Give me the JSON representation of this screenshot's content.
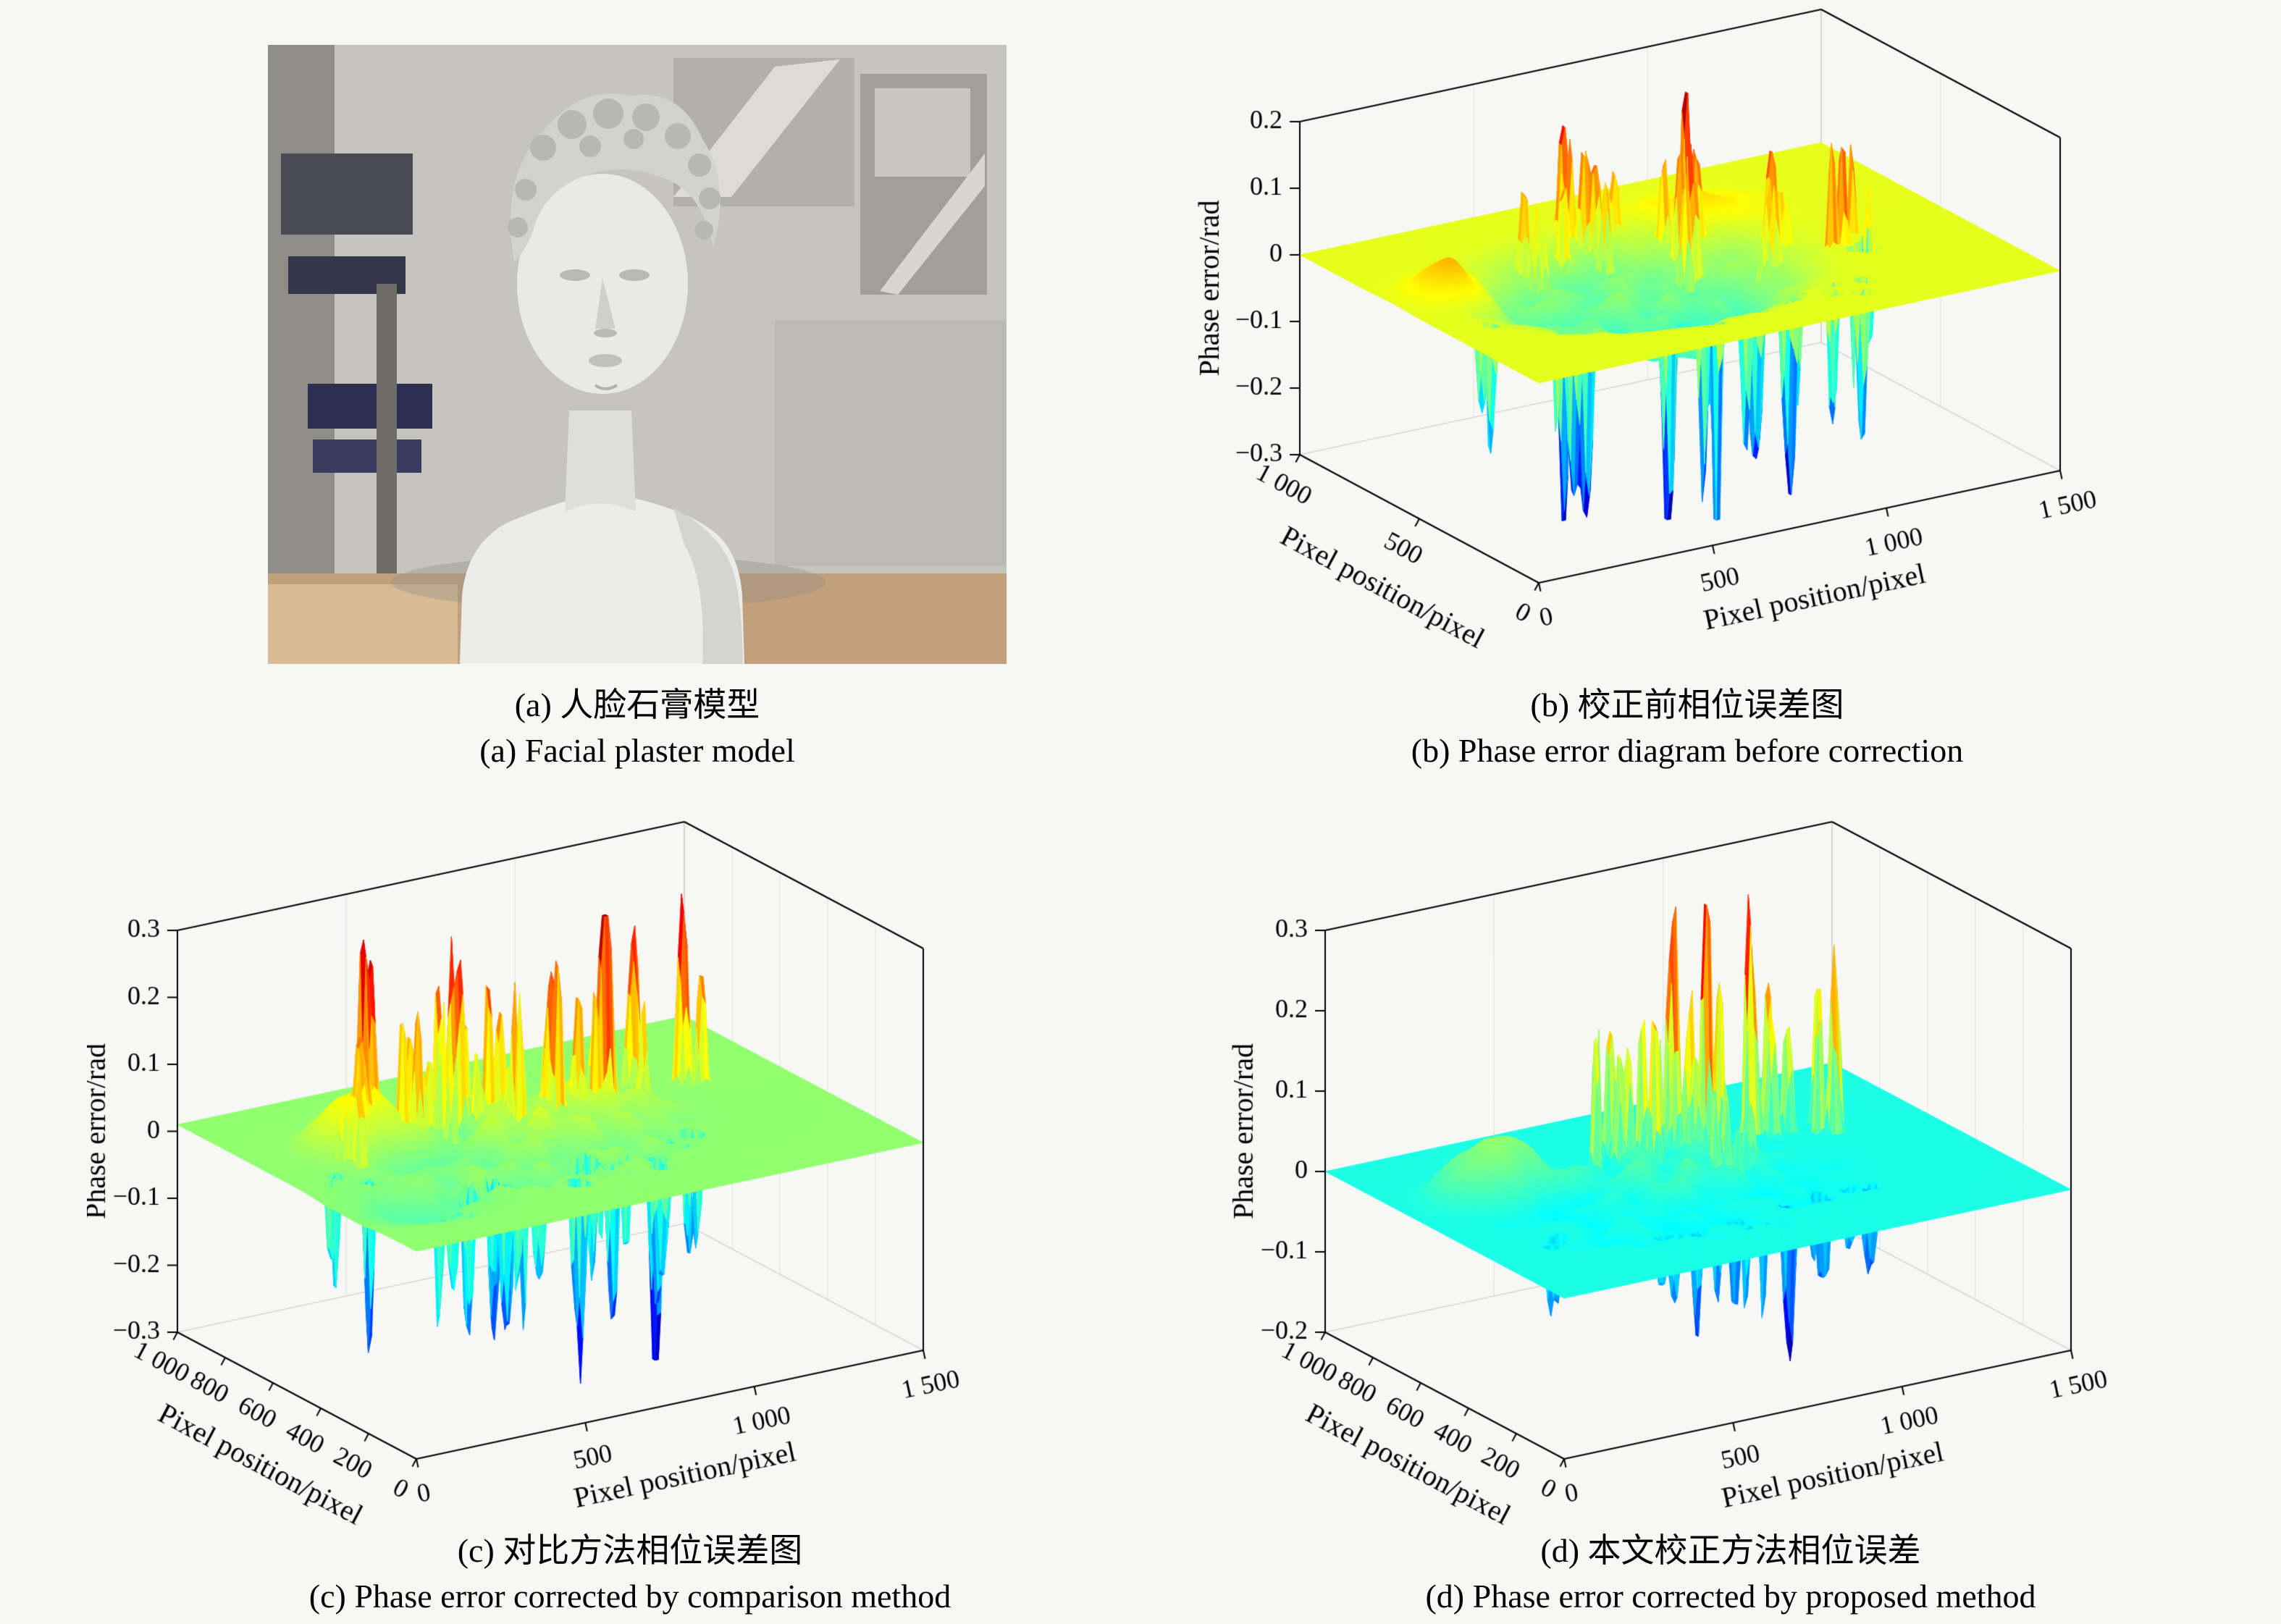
{
  "page": {
    "background": "#f7f7f6"
  },
  "panels": {
    "a": {
      "caption_zh": "(a) 人脸石膏模型",
      "caption_en": "(a) Facial plaster model",
      "photo_description": "Grayscale photograph of a facial plaster bust (statue with curly hair) standing on a tan desk in front of a cluttered gray laboratory wall"
    },
    "b": {
      "caption_zh": "(b) 校正前相位误差图",
      "caption_en": "(b) Phase error diagram before correction"
    },
    "c": {
      "caption_zh": "(c) 对比方法相位误差图",
      "caption_en": "(c) Phase error corrected by comparison method"
    },
    "d": {
      "caption_zh": "(d) 本文校正方法相位误差",
      "caption_en": "(d) Phase error corrected by proposed method"
    }
  },
  "chart_data": [
    {
      "id": "b",
      "type": "surface3d",
      "title": "Phase error diagram before correction",
      "xlabel": "Pixel position/pixel",
      "ylabel": "Pixel position/pixel",
      "zlabel": "Phase error/rad",
      "xlim": [
        0,
        1500
      ],
      "ylim": [
        0,
        1000
      ],
      "zlim": [
        -0.3,
        0.2
      ],
      "xticks": {
        "values": [
          0,
          500,
          1000,
          1500
        ],
        "labels": [
          "0",
          "500",
          "1 000",
          "1 500"
        ]
      },
      "yticks": {
        "values": [
          0,
          500,
          1000
        ],
        "labels": [
          "0",
          "500",
          "1 000"
        ]
      },
      "zticks": {
        "values": [
          0.2,
          0.1,
          0,
          -0.1,
          -0.2,
          -0.3
        ],
        "labels": [
          "0.2",
          "0.1",
          "0",
          "−0.1",
          "−0.2",
          "−0.3"
        ]
      },
      "colormap": "jet",
      "grid": true,
      "description": "Mostly flat plane at 0 rad (yellow) with a ragged central depression near −0.05 rad (green), clusters of positive spikes up to +0.18 rad (red) toward the back and deep negative dips down to −0.3 rad (blue) along the front.",
      "base": 0,
      "plateaus": [
        {
          "x": 620,
          "y": 500,
          "sx": 430,
          "sy": 300,
          "p": 3,
          "amp": -0.055,
          "noise": 0.02
        },
        {
          "x": 700,
          "y": 340,
          "sx": 220,
          "sy": 130,
          "p": 1,
          "amp": -0.035,
          "noise": 0.012
        },
        {
          "x": 180,
          "y": 620,
          "sx": 100,
          "sy": 80,
          "p": 1,
          "amp": 0.05,
          "noise": 0.008
        },
        {
          "x": 950,
          "y": 750,
          "sx": 150,
          "sy": 100,
          "p": 1,
          "amp": 0.03,
          "noise": 0.01
        }
      ],
      "spike_clusters": [
        {
          "x": 680,
          "y": 800,
          "spread_x": 130,
          "spread_y": 80,
          "count": 9,
          "amp_min": 0.07,
          "amp_max": 0.17,
          "r": 13,
          "seed": 11
        },
        {
          "x": 900,
          "y": 660,
          "spread_x": 110,
          "spread_y": 80,
          "count": 10,
          "amp_min": 0.07,
          "amp_max": 0.18,
          "r": 13,
          "seed": 12
        },
        {
          "x": 1060,
          "y": 540,
          "spread_x": 90,
          "spread_y": 60,
          "count": 6,
          "amp_min": 0.06,
          "amp_max": 0.16,
          "r": 13,
          "seed": 13
        },
        {
          "x": 1170,
          "y": 430,
          "spread_x": 60,
          "spread_y": 50,
          "count": 4,
          "amp_min": 0.1,
          "amp_max": 0.19,
          "r": 14,
          "seed": 14
        },
        {
          "x": 540,
          "y": 720,
          "spread_x": 70,
          "spread_y": 50,
          "count": 5,
          "amp_min": 0.05,
          "amp_max": 0.12,
          "r": 12,
          "seed": 15
        },
        {
          "x": 290,
          "y": 270,
          "spread_x": 80,
          "spread_y": 60,
          "count": 5,
          "amp_min": -0.29,
          "amp_max": -0.12,
          "r": 15,
          "seed": 21
        },
        {
          "x": 560,
          "y": 190,
          "spread_x": 90,
          "spread_y": 60,
          "count": 6,
          "amp_min": -0.3,
          "amp_max": -0.14,
          "r": 15,
          "seed": 22
        },
        {
          "x": 800,
          "y": 250,
          "spread_x": 90,
          "spread_y": 70,
          "count": 6,
          "amp_min": -0.3,
          "amp_max": -0.14,
          "r": 15,
          "seed": 23
        },
        {
          "x": 1010,
          "y": 160,
          "spread_x": 70,
          "spread_y": 50,
          "count": 4,
          "amp_min": -0.26,
          "amp_max": -0.12,
          "r": 15,
          "seed": 24
        },
        {
          "x": 150,
          "y": 430,
          "spread_x": 50,
          "spread_y": 60,
          "count": 3,
          "amp_min": -0.2,
          "amp_max": -0.1,
          "r": 14,
          "seed": 25
        },
        {
          "x": 1160,
          "y": 350,
          "spread_x": 50,
          "spread_y": 45,
          "count": 3,
          "amp_min": -0.28,
          "amp_max": -0.14,
          "r": 14,
          "seed": 26
        }
      ]
    },
    {
      "id": "c",
      "type": "surface3d",
      "title": "Phase error corrected by comparison method",
      "xlabel": "Pixel position/pixel",
      "ylabel": "Pixel position/pixel",
      "zlabel": "Phase error/rad",
      "xlim": [
        0,
        1500
      ],
      "ylim": [
        0,
        1000
      ],
      "zlim": [
        -0.3,
        0.3
      ],
      "xticks": {
        "values": [
          0,
          500,
          1000,
          1500
        ],
        "labels": [
          "0",
          "500",
          "1 000",
          "1 500"
        ]
      },
      "yticks": {
        "values": [
          0,
          200,
          400,
          600,
          800,
          1000
        ],
        "labels": [
          "0",
          "200",
          "400",
          "600",
          "800",
          "1 000"
        ]
      },
      "zticks": {
        "values": [
          0.3,
          0.2,
          0.1,
          0,
          -0.1,
          -0.2,
          -0.3
        ],
        "labels": [
          "0.3",
          "0.2",
          "0.1",
          "0",
          "−0.1",
          "−0.2",
          "−0.3"
        ]
      },
      "colormap": "jet",
      "grid": true,
      "description": "Nearly flat yellow-green plane at 0 rad with a mottled central band, many thin positive spikes up to about +0.22 rad (red/orange) across the middle and negative dips down to about −0.25 rad (blue) in front.",
      "base": 0.01,
      "plateaus": [
        {
          "x": 650,
          "y": 480,
          "sx": 450,
          "sy": 270,
          "p": 3,
          "amp": -0.01,
          "noise": 0.02
        },
        {
          "x": 320,
          "y": 680,
          "sx": 160,
          "sy": 100,
          "p": 2,
          "amp": 0.055,
          "noise": 0.012
        },
        {
          "x": 820,
          "y": 560,
          "sx": 260,
          "sy": 150,
          "p": 2,
          "amp": 0.03,
          "noise": 0.012
        },
        {
          "x": 200,
          "y": 300,
          "sx": 150,
          "sy": 120,
          "p": 1,
          "amp": -0.03,
          "noise": 0.01
        }
      ],
      "spike_clusters": [
        {
          "x": 330,
          "y": 700,
          "spread_x": 70,
          "spread_y": 50,
          "count": 6,
          "amp_min": 0.09,
          "amp_max": 0.2,
          "r": 12,
          "seed": 31
        },
        {
          "x": 490,
          "y": 660,
          "spread_x": 80,
          "spread_y": 60,
          "count": 8,
          "amp_min": 0.09,
          "amp_max": 0.22,
          "r": 12,
          "seed": 32
        },
        {
          "x": 630,
          "y": 700,
          "spread_x": 80,
          "spread_y": 60,
          "count": 8,
          "amp_min": 0.09,
          "amp_max": 0.22,
          "r": 12,
          "seed": 33
        },
        {
          "x": 770,
          "y": 640,
          "spread_x": 70,
          "spread_y": 50,
          "count": 6,
          "amp_min": 0.08,
          "amp_max": 0.2,
          "r": 12,
          "seed": 34
        },
        {
          "x": 910,
          "y": 610,
          "spread_x": 80,
          "spread_y": 60,
          "count": 8,
          "amp_min": 0.09,
          "amp_max": 0.22,
          "r": 12,
          "seed": 35
        },
        {
          "x": 1060,
          "y": 630,
          "spread_x": 70,
          "spread_y": 50,
          "count": 5,
          "amp_min": 0.08,
          "amp_max": 0.18,
          "r": 12,
          "seed": 36
        },
        {
          "x": 1260,
          "y": 610,
          "spread_x": 50,
          "spread_y": 45,
          "count": 4,
          "amp_min": 0.1,
          "amp_max": 0.2,
          "r": 13,
          "seed": 37
        },
        {
          "x": 180,
          "y": 560,
          "spread_x": 50,
          "spread_y": 40,
          "count": 3,
          "amp_min": 0.07,
          "amp_max": 0.14,
          "r": 12,
          "seed": 38
        },
        {
          "x": 150,
          "y": 470,
          "spread_x": 60,
          "spread_y": 60,
          "count": 4,
          "amp_min": -0.22,
          "amp_max": -0.1,
          "r": 14,
          "seed": 41
        },
        {
          "x": 420,
          "y": 300,
          "spread_x": 80,
          "spread_y": 60,
          "count": 6,
          "amp_min": -0.24,
          "amp_max": -0.12,
          "r": 14,
          "seed": 42
        },
        {
          "x": 560,
          "y": 230,
          "spread_x": 70,
          "spread_y": 55,
          "count": 5,
          "amp_min": -0.22,
          "amp_max": -0.1,
          "r": 14,
          "seed": 43
        },
        {
          "x": 710,
          "y": 300,
          "spread_x": 80,
          "spread_y": 60,
          "count": 6,
          "amp_min": -0.24,
          "amp_max": -0.12,
          "r": 14,
          "seed": 44
        },
        {
          "x": 880,
          "y": 230,
          "spread_x": 70,
          "spread_y": 55,
          "count": 5,
          "amp_min": -0.22,
          "amp_max": -0.12,
          "r": 14,
          "seed": 45
        },
        {
          "x": 1030,
          "y": 300,
          "spread_x": 60,
          "spread_y": 50,
          "count": 4,
          "amp_min": -0.2,
          "amp_max": -0.1,
          "r": 14,
          "seed": 46
        },
        {
          "x": 260,
          "y": 200,
          "spread_x": 50,
          "spread_y": 45,
          "count": 3,
          "amp_min": -0.18,
          "amp_max": -0.08,
          "r": 13,
          "seed": 47
        }
      ]
    },
    {
      "id": "d",
      "type": "surface3d",
      "title": "Phase error corrected by proposed method",
      "xlabel": "Pixel position/pixel",
      "ylabel": "Pixel position/pixel",
      "zlabel": "Phase error/rad",
      "xlim": [
        0,
        1500
      ],
      "ylim": [
        0,
        1000
      ],
      "zlim": [
        -0.2,
        0.3
      ],
      "xticks": {
        "values": [
          0,
          500,
          1000,
          1500
        ],
        "labels": [
          "0",
          "500",
          "1 000",
          "1 500"
        ]
      },
      "yticks": {
        "values": [
          0,
          200,
          400,
          600,
          800,
          1000
        ],
        "labels": [
          "0",
          "200",
          "400",
          "600",
          "800",
          "1 000"
        ]
      },
      "zticks": {
        "values": [
          0.3,
          0.2,
          0.1,
          0,
          -0.1,
          -0.2
        ],
        "labels": [
          "0.3",
          "0.2",
          "0.1",
          "0",
          "−0.1",
          "−0.2"
        ]
      },
      "colormap": "jet",
      "grid": true,
      "description": "Very flat teal-green plane at 0 rad with a slightly raised yellow-green plateau on the left, sparse thin positive spikes up to about +0.22 rad (red) toward the back and shallow negative dips down to about −0.14 rad (blue) in front.",
      "base": 0,
      "plateaus": [
        {
          "x": 280,
          "y": 680,
          "sx": 170,
          "sy": 110,
          "p": 2,
          "amp": 0.05,
          "noise": 0.012
        },
        {
          "x": 700,
          "y": 560,
          "sx": 300,
          "sy": 170,
          "p": 3,
          "amp": 0.02,
          "noise": 0.012
        },
        {
          "x": 650,
          "y": 450,
          "sx": 480,
          "sy": 280,
          "p": 3,
          "amp": -0.008,
          "noise": 0.01
        }
      ],
      "spike_clusters": [
        {
          "x": 620,
          "y": 720,
          "spread_x": 70,
          "spread_y": 50,
          "count": 6,
          "amp_min": 0.12,
          "amp_max": 0.22,
          "r": 12,
          "seed": 51
        },
        {
          "x": 770,
          "y": 700,
          "spread_x": 80,
          "spread_y": 55,
          "count": 8,
          "amp_min": 0.12,
          "amp_max": 0.22,
          "r": 12,
          "seed": 52
        },
        {
          "x": 910,
          "y": 650,
          "spread_x": 70,
          "spread_y": 50,
          "count": 6,
          "amp_min": 0.1,
          "amp_max": 0.2,
          "r": 12,
          "seed": 53
        },
        {
          "x": 1070,
          "y": 680,
          "spread_x": 70,
          "spread_y": 50,
          "count": 6,
          "amp_min": 0.12,
          "amp_max": 0.22,
          "r": 12,
          "seed": 54
        },
        {
          "x": 1240,
          "y": 650,
          "spread_x": 50,
          "spread_y": 45,
          "count": 4,
          "amp_min": 0.1,
          "amp_max": 0.2,
          "r": 13,
          "seed": 55
        },
        {
          "x": 860,
          "y": 520,
          "spread_x": 70,
          "spread_y": 45,
          "count": 5,
          "amp_min": 0.05,
          "amp_max": 0.11,
          "r": 12,
          "seed": 56
        },
        {
          "x": 230,
          "y": 340,
          "spread_x": 55,
          "spread_y": 50,
          "count": 3,
          "amp_min": -0.12,
          "amp_max": -0.06,
          "r": 14,
          "seed": 61
        },
        {
          "x": 520,
          "y": 260,
          "spread_x": 70,
          "spread_y": 50,
          "count": 4,
          "amp_min": -0.11,
          "amp_max": -0.05,
          "r": 14,
          "seed": 62
        },
        {
          "x": 700,
          "y": 220,
          "spread_x": 70,
          "spread_y": 50,
          "count": 4,
          "amp_min": -0.12,
          "amp_max": -0.06,
          "r": 14,
          "seed": 63
        },
        {
          "x": 905,
          "y": 260,
          "spread_x": 70,
          "spread_y": 55,
          "count": 5,
          "amp_min": -0.14,
          "amp_max": -0.07,
          "r": 14,
          "seed": 64
        },
        {
          "x": 1090,
          "y": 300,
          "spread_x": 55,
          "spread_y": 45,
          "count": 3,
          "amp_min": -0.11,
          "amp_max": -0.05,
          "r": 14,
          "seed": 65
        }
      ]
    }
  ]
}
